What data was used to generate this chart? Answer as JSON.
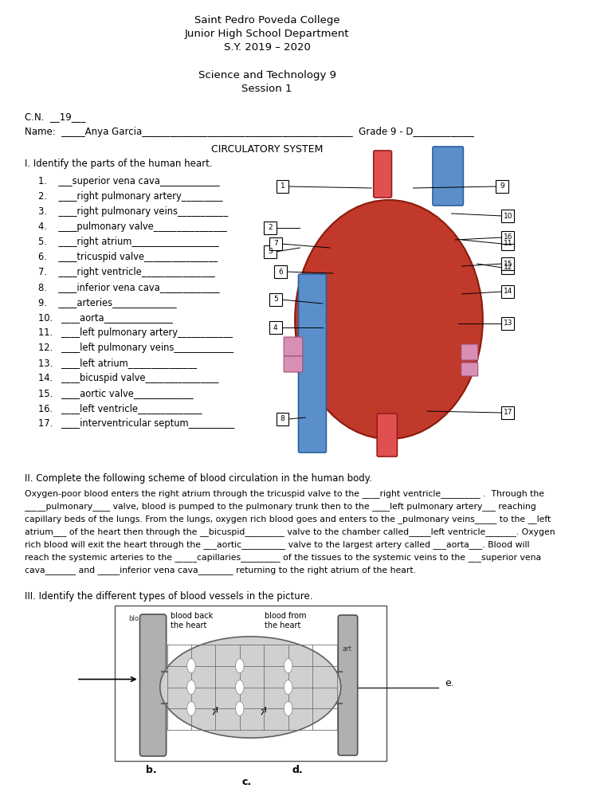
{
  "title_lines": [
    "Saint Pedro Poveda College",
    "Junior High School Department",
    "S.Y. 2019 – 2020"
  ],
  "subtitle_lines": [
    "Science and Technology 9",
    "Session 1"
  ],
  "cn_line": "C.N.  __19___",
  "name_line": "Name:  _____Anya Garcia_____________________________________________  Grade 9 - D_____________",
  "section_title": "CIRCULATORY SYSTEM",
  "part1_heading": "I. Identify the parts of the human heart.",
  "numbered_items": [
    "1.    ___superior vena cava_____________",
    "2.    ____right pulmonary artery_________",
    "3.    ____right pulmonary veins___________",
    "4.    ____pulmonary valve________________",
    "5.    ____right atrium___________________",
    "6.    ____tricuspid valve________________",
    "7.    ____right ventricle________________",
    "8.    ____inferior vena cava_____________",
    "9.    ____arteries______________",
    "10.   ____aorta_______________",
    "11.   ____left pulmonary artery____________",
    "12.   ____left pulmonary veins_____________",
    "13.   ____left atrium_______________",
    "14.   ____bicuspid valve________________",
    "15.   ____aortic valve_____________",
    "16.   ____left ventricle______________",
    "17.   ____interventricular septum__________"
  ],
  "part2_heading": "II. Complete the following scheme of blood circulation in the human body.",
  "part2_lines": [
    "Oxygen-poor blood enters the right atrium through the tricuspid valve to the ____right ventricle_________ .  Through the",
    "_____pulmonary____ valve, blood is pumped to the pulmonary trunk then to the ____left pulmonary artery___ reaching",
    "capillary beds of the lungs. From the lungs, oxygen rich blood goes and enters to the _pulmonary veins_____ to the __left",
    "atrium___ of the heart then through the __bicuspid_________ valve to the chamber called_____left ventricle_______. Oxygen",
    "rich blood will exit the heart through the ___aortic__________ valve to the largest artery called ___aorta___. Blood will",
    "reach the systemic arteries to the _____capillaries_________ of the tissues to the systemic veins to the ___superior vena",
    "cava_______ and _____inferior vena cava________ returning to the right atrium of the heart."
  ],
  "part3_heading": "III. Identify the different types of blood vessels in the picture.",
  "label_b": "b.",
  "label_c": "c.",
  "label_d": "d.",
  "label_e": "e.",
  "bg_color": "#ffffff",
  "text_color": "#000000",
  "font_size_title": 9.5,
  "font_size_body": 8.5
}
